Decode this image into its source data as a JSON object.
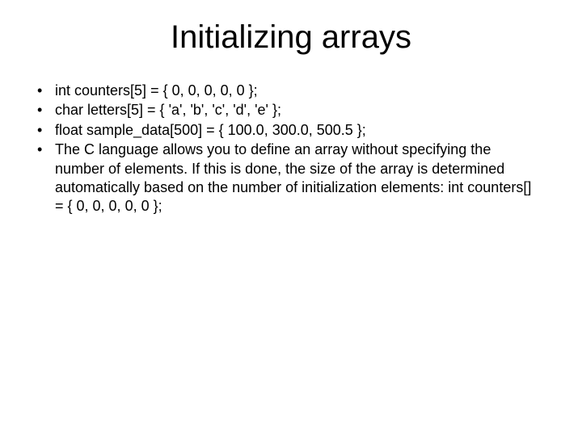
{
  "title": "Initializing arrays",
  "bullets": [
    "int counters[5] = { 0, 0, 0, 0, 0 };",
    "char letters[5] = { 'a', 'b', 'c', 'd', 'e' };",
    "float sample_data[500] = { 100.0, 300.0, 500.5 };",
    "The C language allows you to define an array without specifying the number of elements. If this is done, the size of the array is determined automatically based on the number of initialization elements: int counters[] = { 0, 0, 0, 0, 0 };"
  ],
  "colors": {
    "background": "#ffffff",
    "text": "#000000"
  },
  "typography": {
    "title_fontsize": 40,
    "body_fontsize": 18,
    "font_family": "Arial"
  }
}
